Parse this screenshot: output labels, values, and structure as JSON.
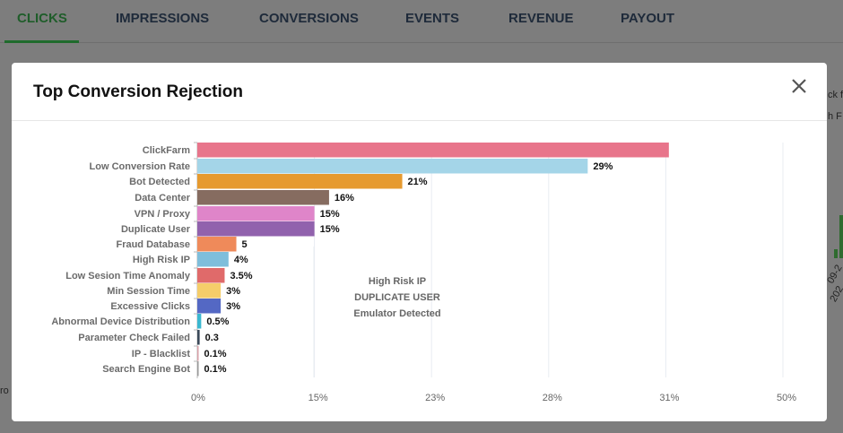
{
  "tabs": [
    {
      "label": "CLICKS",
      "active": true
    },
    {
      "label": "IMPRESSIONS"
    },
    {
      "label": "CONVERSIONS"
    },
    {
      "label": "EVENTS"
    },
    {
      "label": "REVENUE"
    },
    {
      "label": "PAYOUT"
    }
  ],
  "background": {
    "snippet1": "ck f",
    "snippet2": "h F",
    "snippet3": "09-2",
    "snippet4": "202",
    "snippet5": "ro"
  },
  "modal": {
    "title": "Top Conversion Rejection",
    "close_icon": "close-icon"
  },
  "chart_data": {
    "type": "bar",
    "orientation": "horizontal",
    "grid": true,
    "categories": [
      "ClickFarm",
      "Low Conversion Rate",
      "Bot Detected",
      "Data Center",
      "VPN / Proxy",
      "Duplicate User",
      "Fraud Database",
      "High Risk IP",
      "Low Sesion Time Anomaly",
      "Min Session Time",
      "Excessive Clicks",
      "Abnormal Device Distribution",
      "Parameter Check Failed",
      "IP - Blacklist",
      "Search Engine Bot"
    ],
    "values": [
      31.5,
      29,
      21,
      16,
      15,
      15,
      5,
      4,
      3.5,
      3,
      3,
      0.5,
      0.3,
      0.1,
      0.1
    ],
    "data_labels": [
      "",
      "29%",
      "21%",
      "16%",
      "15%",
      "15%",
      "5",
      "4%",
      "3.5%",
      "3%",
      "3%",
      "0.5%",
      "0.3",
      "0.1%",
      "0.1%"
    ],
    "colors": [
      "#e8758b",
      "#a4d5e8",
      "#e69a2f",
      "#866c60",
      "#df85c9",
      "#9162ad",
      "#ef8a5a",
      "#7fbedb",
      "#e06a6a",
      "#f5cd6a",
      "#5468c4",
      "#3ab7d0",
      "#3b4a5a",
      "#d9a0a8",
      "#999999"
    ],
    "x_ticks": [
      "0%",
      "15%",
      "23%",
      "28%",
      "31%",
      "50%"
    ],
    "x_tick_values": [
      0,
      15,
      23,
      28,
      31,
      50
    ],
    "annotations": [
      "High Risk IP",
      "DUPLICATE USER",
      "Emulator Detected"
    ]
  }
}
